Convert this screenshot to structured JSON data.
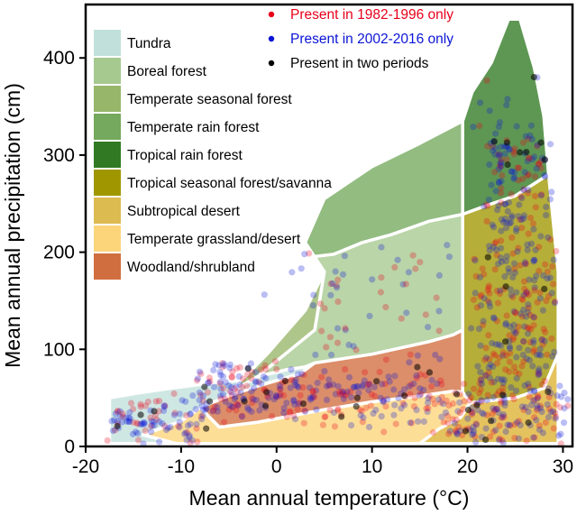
{
  "chart_data": {
    "type": "scatter",
    "xlabel": "Mean annual temperature (°C)",
    "ylabel": "Mean annual precipitation (cm)",
    "xlim": [
      -20,
      31
    ],
    "ylim": [
      0,
      455
    ],
    "xticks": [
      -20,
      -10,
      0,
      10,
      20,
      30
    ],
    "yticks": [
      0,
      100,
      200,
      300,
      400
    ],
    "biome_legend": [
      {
        "name": "Tundra",
        "color": "#c1e0db"
      },
      {
        "name": "Boreal forest",
        "color": "#a6c98f"
      },
      {
        "name": "Temperate seasonal forest",
        "color": "#97b669"
      },
      {
        "name": "Temperate rain forest",
        "color": "#75a95d"
      },
      {
        "name": "Tropical rain forest",
        "color": "#317a23"
      },
      {
        "name": "Tropical seasonal forest/savanna",
        "color": "#a09700"
      },
      {
        "name": "Subtropical desert",
        "color": "#dcbb50"
      },
      {
        "name": "Temperate grassland/desert",
        "color": "#fcd57a"
      },
      {
        "name": "Woodland/shrubland",
        "color": "#d16e3f"
      }
    ],
    "point_legend": [
      {
        "name": "Present in 1982-1996 only",
        "color": "#e8001a"
      },
      {
        "name": "Present in 2002-2016 only",
        "color": "#0a14d6"
      },
      {
        "name": "Present in two periods",
        "color": "#000000"
      }
    ],
    "biome_regions": [
      {
        "name": "Tundra",
        "color": "#c1e0db",
        "polygon": [
          [
            -17.5,
            3
          ],
          [
            -17.5,
            50
          ],
          [
            -14.5,
            55
          ],
          [
            -11,
            60
          ],
          [
            -7,
            65
          ],
          [
            -4,
            68
          ],
          [
            -2,
            72
          ],
          [
            1,
            79
          ],
          [
            3,
            82
          ],
          [
            4,
            86
          ],
          [
            2.5,
            75
          ],
          [
            -2,
            62
          ],
          [
            -5,
            52
          ],
          [
            -8,
            40
          ],
          [
            -10,
            26
          ],
          [
            -14,
            12
          ],
          [
            -10.5,
            3
          ]
        ]
      },
      {
        "name": "Temperate grassland/desert",
        "color": "#fcd57a",
        "polygon": [
          [
            -10.5,
            3
          ],
          [
            -14,
            12
          ],
          [
            -10,
            26
          ],
          [
            -8,
            40
          ],
          [
            -6,
            20
          ],
          [
            -2,
            25
          ],
          [
            5,
            38
          ],
          [
            10,
            46
          ],
          [
            15,
            52
          ],
          [
            18.5,
            57
          ],
          [
            19.5,
            56
          ],
          [
            20.3,
            45
          ],
          [
            25,
            50
          ],
          [
            28,
            60
          ],
          [
            29.5,
            95
          ],
          [
            29.5,
            3
          ]
        ]
      },
      {
        "name": "Woodland/shrubland",
        "color": "#d16e3f",
        "polygon": [
          [
            -8,
            40
          ],
          [
            -5,
            52
          ],
          [
            -2,
            62
          ],
          [
            2.5,
            75
          ],
          [
            4,
            86
          ],
          [
            10,
            95
          ],
          [
            16,
            108
          ],
          [
            18.5,
            115
          ],
          [
            19.5,
            120
          ],
          [
            19.5,
            56
          ],
          [
            18.5,
            57
          ],
          [
            15,
            52
          ],
          [
            10,
            46
          ],
          [
            5,
            38
          ],
          [
            -2,
            25
          ],
          [
            -6,
            20
          ]
        ]
      },
      {
        "name": "Boreal forest",
        "color": "#a6c98f",
        "polygon": [
          [
            4,
            86
          ],
          [
            3,
            82
          ],
          [
            1,
            79
          ],
          [
            -2,
            72
          ],
          [
            4,
            120
          ],
          [
            5,
            180
          ],
          [
            3.5,
            195
          ],
          [
            6,
            198
          ],
          [
            9,
            210
          ],
          [
            12,
            218
          ],
          [
            16,
            232
          ],
          [
            19.5,
            239
          ],
          [
            19.5,
            120
          ],
          [
            18.5,
            115
          ],
          [
            16,
            108
          ],
          [
            10,
            95
          ]
        ]
      },
      {
        "name": "Temperate seasonal forest",
        "color": "#97b669",
        "polygon": [
          [
            -2,
            72
          ],
          [
            -5,
            55
          ],
          [
            -1,
            95
          ],
          [
            3,
            140
          ],
          [
            5,
            180
          ],
          [
            4,
            120
          ]
        ]
      },
      {
        "name": "Temperate rain forest",
        "color": "#75a95d",
        "polygon": [
          [
            5,
            180
          ],
          [
            3.5,
            195
          ],
          [
            6,
            198
          ],
          [
            9,
            210
          ],
          [
            12,
            218
          ],
          [
            16,
            232
          ],
          [
            19.5,
            239
          ],
          [
            19.5,
            335
          ],
          [
            15,
            312
          ],
          [
            10,
            288
          ],
          [
            5,
            255
          ],
          [
            3,
            210
          ]
        ]
      },
      {
        "name": "Tropical rain forest",
        "color": "#317a23",
        "polygon": [
          [
            19.5,
            239
          ],
          [
            19.5,
            335
          ],
          [
            20.5,
            365
          ],
          [
            22.5,
            395
          ],
          [
            24.3,
            440
          ],
          [
            25.5,
            440
          ],
          [
            27,
            390
          ],
          [
            28,
            340
          ],
          [
            28.5,
            280
          ],
          [
            25,
            258
          ],
          [
            22,
            248
          ]
        ]
      },
      {
        "name": "Tropical seasonal forest/savanna",
        "color": "#a09700",
        "polygon": [
          [
            19.5,
            239
          ],
          [
            22,
            248
          ],
          [
            25,
            258
          ],
          [
            28.5,
            280
          ],
          [
            29.5,
            180
          ],
          [
            29.5,
            95
          ],
          [
            28,
            60
          ],
          [
            25,
            50
          ],
          [
            20.3,
            45
          ],
          [
            19.5,
            56
          ],
          [
            19.5,
            120
          ]
        ]
      },
      {
        "name": "Subtropical desert",
        "color": "#dcbb50",
        "polygon": [
          [
            20.3,
            45
          ],
          [
            25,
            50
          ],
          [
            28,
            60
          ],
          [
            29.5,
            95
          ],
          [
            29.5,
            3
          ],
          [
            15,
            3
          ],
          [
            17,
            18
          ],
          [
            19.3,
            30
          ]
        ]
      }
    ],
    "point_clouds": [
      {
        "series": "Present in 1982-1996 only",
        "color": "#e8001a",
        "count": 420
      },
      {
        "series": "Present in 2002-2016 only",
        "color": "#0a14d6",
        "count": 560
      },
      {
        "series": "Present in two periods",
        "color": "#000000",
        "count": 40
      }
    ],
    "grid": false,
    "legend_position": "top-left (biomes), top-right (points)"
  }
}
